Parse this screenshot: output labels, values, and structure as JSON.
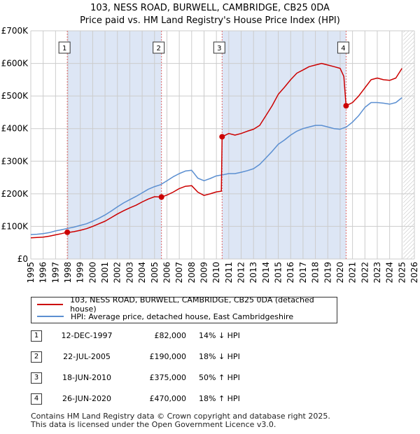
{
  "title_line1": "103, NESS ROAD, BURWELL, CAMBRIDGE, CB25 0DA",
  "title_line2": "Price paid vs. HM Land Registry's House Price Index (HPI)",
  "colors": {
    "property": "#cc0000",
    "hpi": "#5b8fd1",
    "shade": "#dde6f5",
    "marker_line": "#e06666"
  },
  "legend": {
    "property": "103, NESS ROAD, BURWELL, CAMBRIDGE, CB25 0DA (detached house)",
    "hpi": "HPI: Average price, detached house, East Cambridgeshire"
  },
  "transactions": [
    {
      "num": "1",
      "date": "12-DEC-1997",
      "price": "£82,000",
      "hpi": "14% ↓ HPI"
    },
    {
      "num": "2",
      "date": "22-JUL-2005",
      "price": "£190,000",
      "hpi": "18% ↓ HPI"
    },
    {
      "num": "3",
      "date": "18-JUN-2010",
      "price": "£375,000",
      "hpi": "50% ↑ HPI"
    },
    {
      "num": "4",
      "date": "26-JUN-2020",
      "price": "£470,000",
      "hpi": "18% ↑ HPI"
    }
  ],
  "footer": {
    "line1": "Contains HM Land Registry data © Crown copyright and database right 2025.",
    "line2": "This data is licensed under the Open Government Licence v3.0."
  },
  "chart_data": {
    "type": "line",
    "title": "103, NESS ROAD, BURWELL, CAMBRIDGE, CB25 0DA",
    "subtitle": "Price paid vs. HM Land Registry's House Price Index (HPI)",
    "xlim": [
      1995,
      2026
    ],
    "ylim": [
      0,
      700000
    ],
    "x_ticks": [
      "1995",
      "1996",
      "1997",
      "1998",
      "1999",
      "2000",
      "2001",
      "2002",
      "2003",
      "2004",
      "2005",
      "2006",
      "2007",
      "2008",
      "2009",
      "2010",
      "2011",
      "2012",
      "2013",
      "2014",
      "2015",
      "2016",
      "2017",
      "2018",
      "2019",
      "2020",
      "2021",
      "2022",
      "2023",
      "2024",
      "2025",
      "2026"
    ],
    "y_ticks": [
      {
        "value": 0,
        "label": "£0"
      },
      {
        "value": 100000,
        "label": "£100K"
      },
      {
        "value": 200000,
        "label": "£200K"
      },
      {
        "value": 300000,
        "label": "£300K"
      },
      {
        "value": 400000,
        "label": "£400K"
      },
      {
        "value": 500000,
        "label": "£500K"
      },
      {
        "value": 600000,
        "label": "£600K"
      },
      {
        "value": 700000,
        "label": "£700K"
      }
    ],
    "grid": true,
    "shaded_ranges": [
      [
        1997.95,
        2005.56
      ],
      [
        2010.46,
        2020.48
      ]
    ],
    "forecast_start": 2025.1,
    "sales": [
      {
        "label": "1",
        "x": 1997.95,
        "y": 82000
      },
      {
        "label": "2",
        "x": 2005.56,
        "y": 190000
      },
      {
        "label": "3",
        "x": 2010.46,
        "y": 375000
      },
      {
        "label": "4",
        "x": 2020.48,
        "y": 470000
      }
    ],
    "series": [
      {
        "name": "HPI: Average price, detached house, East Cambridgeshire",
        "x": [
          1995.0,
          1995.5,
          1996.0,
          1996.5,
          1997.0,
          1997.5,
          1998.0,
          1998.5,
          1999.0,
          1999.5,
          2000.0,
          2000.5,
          2001.0,
          2001.5,
          2002.0,
          2002.5,
          2003.0,
          2003.5,
          2004.0,
          2004.5,
          2005.0,
          2005.5,
          2006.0,
          2006.5,
          2007.0,
          2007.5,
          2008.0,
          2008.5,
          2009.0,
          2009.5,
          2010.0,
          2010.5,
          2011.0,
          2011.5,
          2012.0,
          2012.5,
          2013.0,
          2013.5,
          2014.0,
          2014.5,
          2015.0,
          2015.5,
          2016.0,
          2016.5,
          2017.0,
          2017.5,
          2018.0,
          2018.5,
          2019.0,
          2019.5,
          2020.0,
          2020.5,
          2021.0,
          2021.5,
          2022.0,
          2022.5,
          2023.0,
          2023.5,
          2024.0,
          2024.5,
          2025.0
        ],
        "y": [
          75000,
          76000,
          78000,
          81000,
          86000,
          90000,
          94000,
          98000,
          103000,
          108000,
          116000,
          125000,
          135000,
          147000,
          160000,
          172000,
          182000,
          192000,
          203000,
          214000,
          222000,
          228000,
          240000,
          252000,
          262000,
          270000,
          272000,
          248000,
          240000,
          247000,
          255000,
          258000,
          262000,
          262000,
          266000,
          271000,
          277000,
          290000,
          310000,
          330000,
          352000,
          365000,
          380000,
          392000,
          400000,
          405000,
          410000,
          410000,
          405000,
          400000,
          398000,
          405000,
          420000,
          440000,
          465000,
          480000,
          480000,
          478000,
          475000,
          480000,
          495000
        ]
      },
      {
        "name": "103, NESS ROAD, BURWELL, CAMBRIDGE, CB25 0DA (detached house)",
        "x": [
          1995.0,
          1995.5,
          1996.0,
          1996.5,
          1997.0,
          1997.5,
          1997.95,
          1998.0,
          1998.5,
          1999.0,
          1999.5,
          2000.0,
          2000.5,
          2001.0,
          2001.5,
          2002.0,
          2002.5,
          2003.0,
          2003.5,
          2004.0,
          2004.5,
          2005.0,
          2005.56,
          2006.0,
          2006.5,
          2007.0,
          2007.5,
          2008.0,
          2008.5,
          2009.0,
          2009.5,
          2010.0,
          2010.4,
          2010.46,
          2011.0,
          2011.5,
          2012.0,
          2012.5,
          2013.0,
          2013.5,
          2014.0,
          2014.5,
          2015.0,
          2015.5,
          2016.0,
          2016.5,
          2017.0,
          2017.5,
          2018.0,
          2018.5,
          2019.0,
          2019.5,
          2020.0,
          2020.3,
          2020.48,
          2021.0,
          2021.5,
          2022.0,
          2022.5,
          2023.0,
          2023.5,
          2024.0,
          2024.5,
          2025.0
        ],
        "y": [
          65000,
          66000,
          67000,
          70000,
          74000,
          78000,
          82000,
          81000,
          84000,
          88000,
          93000,
          100000,
          108000,
          116000,
          127000,
          138000,
          148000,
          157000,
          165000,
          175000,
          184000,
          191000,
          190000,
          196000,
          205000,
          216000,
          223000,
          225000,
          205000,
          195000,
          200000,
          206000,
          208000,
          375000,
          385000,
          380000,
          385000,
          392000,
          398000,
          410000,
          440000,
          470000,
          505000,
          527000,
          550000,
          570000,
          580000,
          590000,
          595000,
          600000,
          595000,
          590000,
          585000,
          560000,
          470000,
          480000,
          500000,
          525000,
          550000,
          555000,
          550000,
          548000,
          555000,
          585000
        ]
      }
    ]
  }
}
